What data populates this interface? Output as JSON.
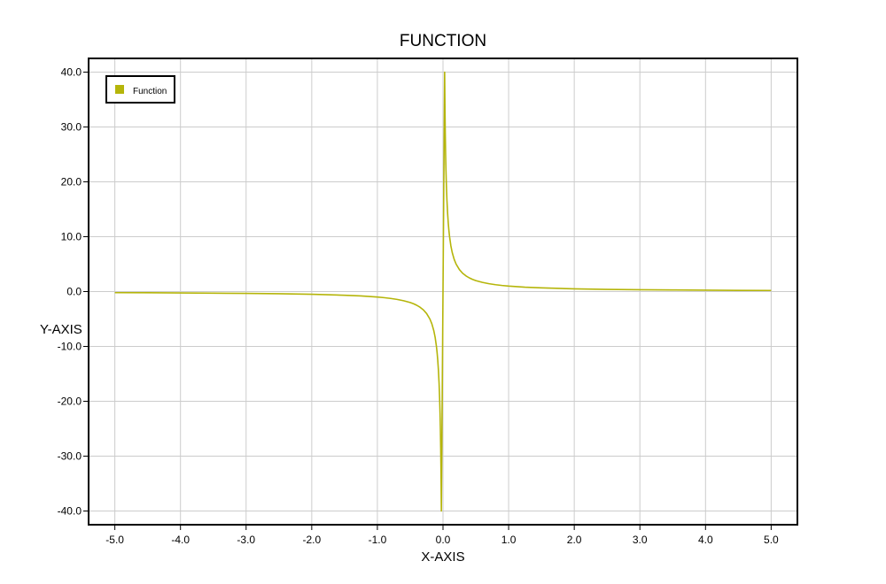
{
  "chart_data": {
    "type": "line",
    "title": "FUNCTION",
    "xlabel": "X-AXIS",
    "ylabel": "Y-AXIS",
    "xlim": [
      -5.4,
      5.4
    ],
    "ylim": [
      -42.5,
      42.5
    ],
    "x_ticks": [
      -5.0,
      -4.0,
      -3.0,
      -2.0,
      -1.0,
      0.0,
      1.0,
      2.0,
      3.0,
      4.0,
      5.0
    ],
    "x_tick_labels": [
      "-5.0",
      "-4.0",
      "-3.0",
      "-2.0",
      "-1.0",
      "0.0",
      "1.0",
      "2.0",
      "3.0",
      "4.0",
      "5.0"
    ],
    "y_ticks": [
      40,
      30,
      20,
      10,
      0,
      -10,
      -20,
      -30,
      -40
    ],
    "y_tick_labels": [
      "40.0",
      "30.0",
      "20.0",
      "10.0",
      "0.0",
      "-10.0",
      "-20.0",
      "-30.0",
      "-40.0"
    ],
    "grid": true,
    "legend_position": "top-left",
    "series": [
      {
        "name": "Function",
        "color": "#b5b50a",
        "x": [
          -5.0,
          -4.5,
          -4.0,
          -3.5,
          -3.0,
          -2.5,
          -2.0,
          -1.5,
          -1.25,
          -1.0,
          -0.9,
          -0.8,
          -0.7,
          -0.6,
          -0.5,
          -0.45,
          -0.4,
          -0.35,
          -0.3,
          -0.25,
          -0.2,
          -0.17,
          -0.14,
          -0.12,
          -0.1,
          -0.09,
          -0.08,
          -0.07,
          -0.06,
          -0.05,
          -0.045,
          -0.04,
          -0.035,
          -0.03,
          -0.025,
          0.025,
          0.03,
          0.035,
          0.04,
          0.045,
          0.05,
          0.06,
          0.07,
          0.08,
          0.09,
          0.1,
          0.12,
          0.14,
          0.17,
          0.2,
          0.25,
          0.3,
          0.35,
          0.4,
          0.45,
          0.5,
          0.6,
          0.7,
          0.8,
          0.9,
          1.0,
          1.25,
          1.5,
          2.0,
          2.5,
          3.0,
          3.5,
          4.0,
          4.5,
          5.0
        ],
        "y": [
          -0.2,
          -0.22,
          -0.25,
          -0.29,
          -0.33,
          -0.4,
          -0.5,
          -0.67,
          -0.8,
          -1.0,
          -1.11,
          -1.25,
          -1.43,
          -1.67,
          -2.0,
          -2.22,
          -2.5,
          -2.86,
          -3.33,
          -4.0,
          -5.0,
          -5.88,
          -7.14,
          -8.33,
          -10.0,
          -11.11,
          -12.5,
          -14.29,
          -16.67,
          -20.0,
          -22.22,
          -25.0,
          -28.57,
          -33.33,
          -40.0,
          40.0,
          33.33,
          28.57,
          25.0,
          22.22,
          20.0,
          16.67,
          14.29,
          12.5,
          11.11,
          10.0,
          8.33,
          7.14,
          5.88,
          5.0,
          4.0,
          3.33,
          2.86,
          2.5,
          2.22,
          2.0,
          1.67,
          1.43,
          1.25,
          1.11,
          1.0,
          0.8,
          0.67,
          0.5,
          0.4,
          0.33,
          0.29,
          0.25,
          0.22,
          0.2
        ]
      }
    ]
  }
}
